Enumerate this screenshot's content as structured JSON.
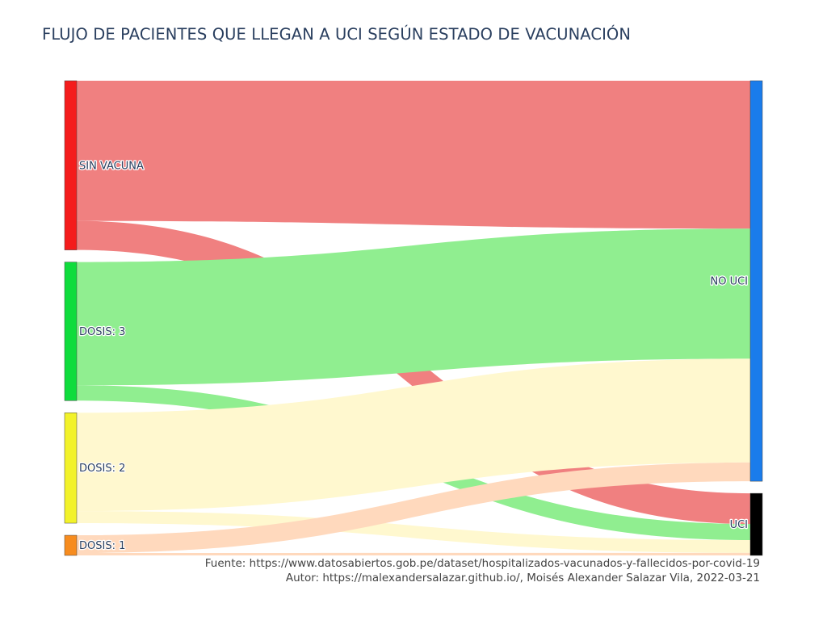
{
  "chart_data": {
    "type": "sankey",
    "title": "FLUJO DE PACIENTES QUE LLEGAN A UCI SEGÚN ESTADO DE VACUNACIÓN",
    "nodes": [
      {
        "id": "sin_vacuna",
        "label": "SIN VACUNA",
        "color": "#f41c1c",
        "side": "left"
      },
      {
        "id": "dosis3",
        "label": "DOSIS: 3",
        "color": "#0fdc3c",
        "side": "left"
      },
      {
        "id": "dosis2",
        "label": "DOSIS: 2",
        "color": "#f2f22a",
        "side": "left"
      },
      {
        "id": "dosis1",
        "label": "DOSIS: 1",
        "color": "#f78c1e",
        "side": "left"
      },
      {
        "id": "no_uci",
        "label": "NO UCI",
        "color": "#1a7ceb",
        "side": "right"
      },
      {
        "id": "uci",
        "label": "UCI",
        "color": "#000000",
        "side": "right"
      }
    ],
    "links": [
      {
        "source": "sin_vacuna",
        "target": "no_uci",
        "value": 174,
        "color": "#f08080"
      },
      {
        "source": "sin_vacuna",
        "target": "uci",
        "value": 36,
        "color": "#f08080"
      },
      {
        "source": "dosis3",
        "target": "no_uci",
        "value": 153,
        "color": "#90ee90"
      },
      {
        "source": "dosis3",
        "target": "uci",
        "value": 19,
        "color": "#90ee90"
      },
      {
        "source": "dosis2",
        "target": "no_uci",
        "value": 122,
        "color": "#fff8cf"
      },
      {
        "source": "dosis2",
        "target": "uci",
        "value": 15,
        "color": "#fff8cf"
      },
      {
        "source": "dosis1",
        "target": "no_uci",
        "value": 22,
        "color": "#ffd9bd"
      },
      {
        "source": "dosis1",
        "target": "uci",
        "value": 3,
        "color": "#ffd9bd"
      }
    ]
  },
  "footer": {
    "source": "Fuente: https://www.datosabiertos.gob.pe/dataset/hospitalizados-vacunados-y-fallecidos-por-covid-19",
    "author": "Autor: https://malexandersalazar.github.io/, Moisés Alexander Salazar Vila, 2022-03-21"
  }
}
